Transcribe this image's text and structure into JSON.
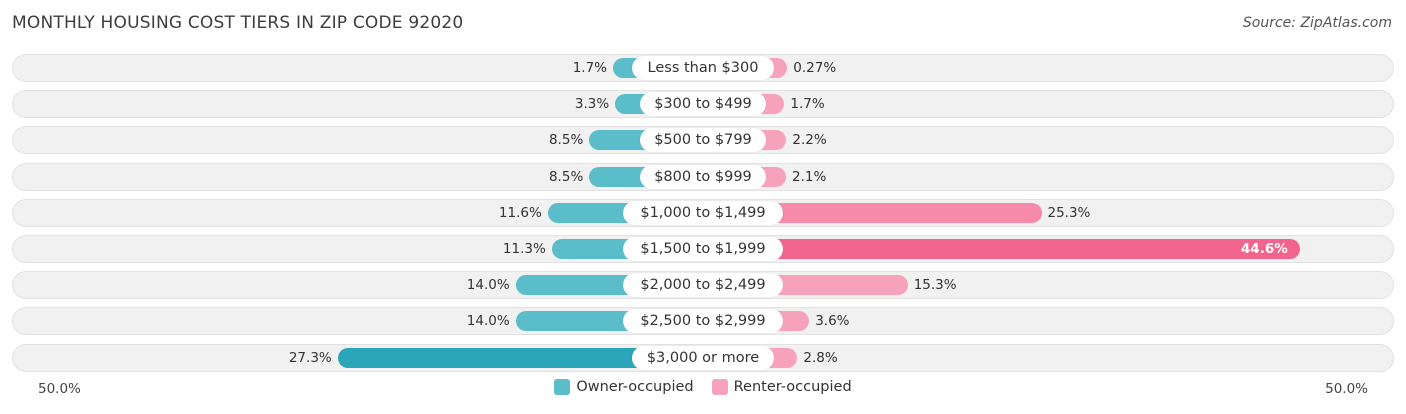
{
  "header": {
    "title": "MONTHLY HOUSING COST TIERS IN ZIP CODE 92020",
    "source": "Source: ZipAtlas.com"
  },
  "colors": {
    "owner": "#5bbcca",
    "owner_strong": "#2aa6b8",
    "renter": "#f7a2bd",
    "renter_strong": "#f0648e"
  },
  "legend": {
    "owner_label": "Owner-occupied",
    "renter_label": "Renter-occupied"
  },
  "axis": {
    "left_label": "50.0%",
    "right_label": "50.0%"
  },
  "chart_data": {
    "type": "bar",
    "orientation": "diverging-horizontal",
    "title": "MONTHLY HOUSING COST TIERS IN ZIP CODE 92020",
    "xlim": [
      -50,
      50
    ],
    "categories": [
      "Less than $300",
      "$300 to $499",
      "$500 to $799",
      "$800 to $999",
      "$1,000 to $1,499",
      "$1,500 to $1,999",
      "$2,000 to $2,499",
      "$2,500 to $2,999",
      "$3,000 or more"
    ],
    "series": [
      {
        "name": "Owner-occupied",
        "side": "left",
        "values": [
          1.7,
          3.3,
          8.5,
          8.5,
          11.6,
          11.3,
          14.0,
          14.0,
          27.3
        ],
        "labels": [
          "1.7%",
          "3.3%",
          "8.5%",
          "8.5%",
          "11.6%",
          "11.3%",
          "14.0%",
          "14.0%",
          "27.3%"
        ]
      },
      {
        "name": "Renter-occupied",
        "side": "right",
        "values": [
          0.27,
          1.7,
          2.2,
          2.1,
          25.3,
          44.6,
          15.3,
          3.6,
          2.8
        ],
        "labels": [
          "0.27%",
          "1.7%",
          "2.2%",
          "2.1%",
          "25.3%",
          "44.6%",
          "15.3%",
          "3.6%",
          "2.8%"
        ]
      }
    ]
  }
}
